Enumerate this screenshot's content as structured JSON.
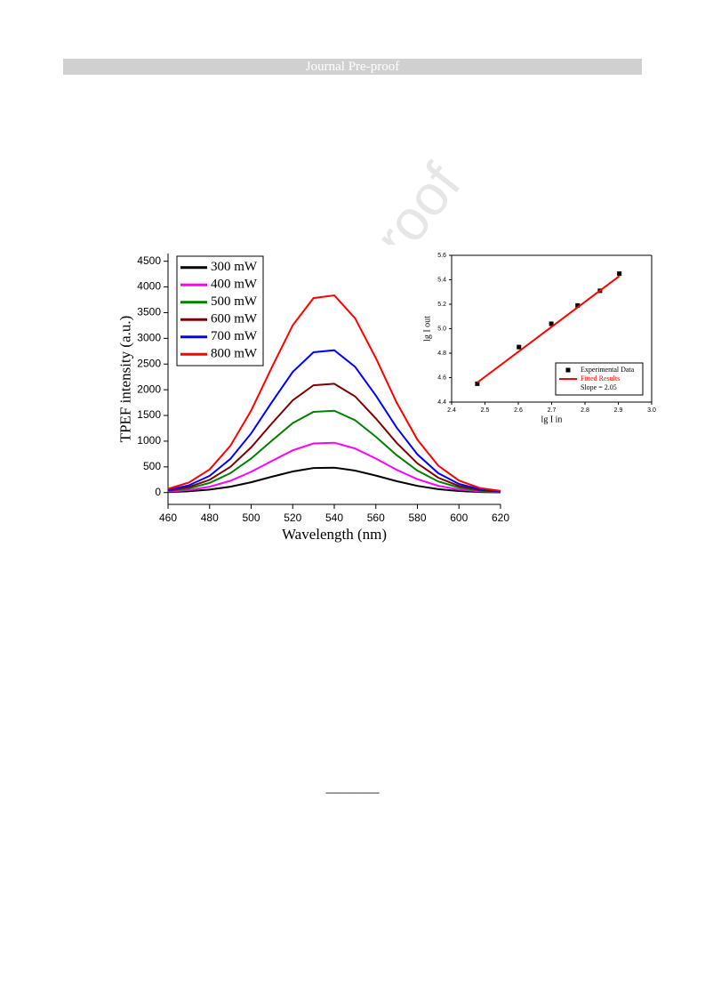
{
  "header": "Journal Pre-proof",
  "watermark": "Journal Pre-proof",
  "separator": "————",
  "chart_data": [
    {
      "type": "line",
      "x_label": "Wavelength (nm)",
      "y_label": "TPEF intensity (a.u.)",
      "x": [
        460,
        470,
        480,
        490,
        500,
        510,
        520,
        530,
        540,
        550,
        560,
        570,
        580,
        590,
        600,
        610,
        620
      ],
      "series": [
        {
          "name": "300 mW",
          "color": "#000000",
          "values": [
            9,
            25,
            57,
            115,
            201,
            308,
            411,
            478,
            485,
            428,
            330,
            221,
            130,
            66,
            29,
            11,
            4
          ]
        },
        {
          "name": "400 mW",
          "color": "#ff00ff",
          "values": [
            19,
            49,
            114,
            229,
            403,
            616,
            822,
            956,
            969,
            857,
            661,
            443,
            260,
            132,
            59,
            23,
            8
          ]
        },
        {
          "name": "500 mW",
          "color": "#008000",
          "values": [
            31,
            81,
            187,
            377,
            662,
            1013,
            1351,
            1570,
            1592,
            1407,
            1085,
            728,
            427,
            217,
            97,
            37,
            13
          ]
        },
        {
          "name": "600 mW",
          "color": "#800000",
          "values": [
            41,
            107,
            248,
            501,
            880,
            1346,
            1795,
            2087,
            2116,
            1870,
            1442,
            967,
            567,
            289,
            128,
            49,
            17
          ]
        },
        {
          "name": "700 mW",
          "color": "#0000ff",
          "values": [
            53,
            140,
            325,
            655,
            1151,
            1761,
            2349,
            2730,
            2769,
            2447,
            1887,
            1266,
            742,
            378,
            168,
            64,
            22
          ]
        },
        {
          "name": "800 mW",
          "color": "#ff0000",
          "values": [
            74,
            194,
            450,
            908,
            1595,
            2441,
            3255,
            3783,
            3837,
            3391,
            2615,
            1754,
            1028,
            524,
            233,
            89,
            31
          ]
        }
      ],
      "xlim": [
        460,
        620
      ],
      "ylim": [
        -230,
        4650
      ],
      "xticks": [
        460,
        480,
        500,
        520,
        540,
        560,
        580,
        600,
        620
      ],
      "yticks": [
        0,
        500,
        1000,
        1500,
        2000,
        2500,
        3000,
        3500,
        4000,
        4500
      ],
      "legend": "upper left"
    },
    {
      "type": "scatter",
      "x_label": "lg I in",
      "y_label": "lg I out",
      "series": [
        {
          "name": "Experimental Data",
          "color": "#000000",
          "x": [
            2.477,
            2.602,
            2.699,
            2.778,
            2.845,
            2.903
          ],
          "values": [
            4.55,
            4.85,
            5.04,
            5.19,
            5.31,
            5.45
          ]
        },
        {
          "name": "Fitted Results",
          "color": "#ff0000",
          "style": "line",
          "x": [
            2.477,
            2.903
          ],
          "values": [
            4.56,
            5.43
          ]
        }
      ],
      "annotation": "Slope = 2.05",
      "xlim": [
        2.4,
        3.0
      ],
      "ylim": [
        4.4,
        5.6
      ],
      "xticks": [
        2.4,
        2.5,
        2.6,
        2.7,
        2.8,
        2.9,
        {
          "value": 3.0,
          "label": "3.0"
        }
      ],
      "yticks": [
        4.4,
        4.6,
        4.8,
        {
          "value": 5.0,
          "label": "5.0"
        },
        5.2,
        5.4,
        5.6
      ],
      "legend": "lower right"
    }
  ]
}
